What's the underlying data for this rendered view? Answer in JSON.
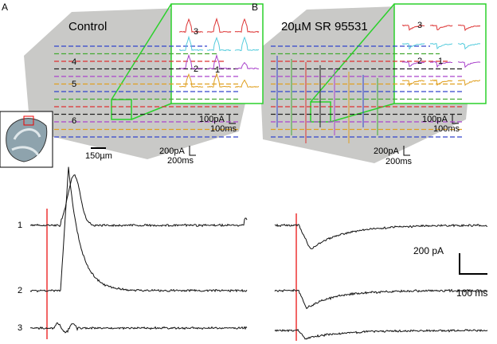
{
  "panel_a": {
    "label": "A",
    "title": "Control",
    "row_labels": [
      "4",
      "5",
      "6"
    ],
    "inset_labels": [
      "3",
      "2",
      "1"
    ],
    "scale_bars": {
      "length": "150µm",
      "inset_current": "100pA",
      "inset_time": "100ms",
      "main_current": "200pA",
      "main_time": "200ms"
    }
  },
  "panel_b": {
    "label": "B",
    "title": "20µM SR 95531",
    "inset_labels": [
      "3",
      "2",
      "1"
    ],
    "scale_bars": {
      "inset_current": "100pA",
      "inset_time": "100ms",
      "main_current": "200pA",
      "main_time": "200ms"
    }
  },
  "traces": {
    "a_labels": [
      "1",
      "2",
      "3"
    ],
    "scale_current": "200 pA",
    "scale_time": "100 ms"
  }
}
